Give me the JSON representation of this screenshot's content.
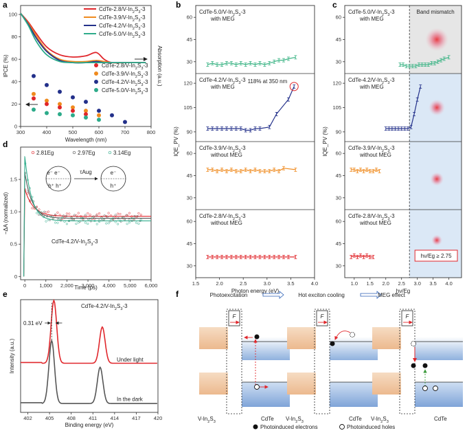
{
  "colors": {
    "red": "#e0262b",
    "orange": "#ef8a1e",
    "navy": "#23308a",
    "teal": "#2dab8a",
    "green": "#3cb485",
    "grey": "#555555",
    "blue_panel": "#dbe8f6",
    "grey_panel": "#e6e6e6",
    "sample_bg": "#f2d2b4"
  },
  "chart_data": [
    {
      "panel": "a",
      "type": "line",
      "xlabel": "Wavelength (nm)",
      "ylabel": "IPCE (%)",
      "ylabel_right": "Absorption (a.u.)",
      "xlim": [
        300,
        800
      ],
      "ylim": [
        0,
        100
      ],
      "xticks": [
        "300",
        "400",
        "500",
        "600",
        "700",
        "800"
      ],
      "yticks": [
        "0",
        "20",
        "40",
        "60",
        "80",
        "100"
      ],
      "legend_lines": [
        "CdTe-2.8/V-In2S3-3",
        "CdTe-3.9/V-In2S3-3",
        "CdTe-4.2/V-In2S3-3",
        "CdTe-5.0/V-In2S3-3"
      ],
      "legend_points": [
        "CdTe-2.8/V-In2S3-3",
        "CdTe-3.9/V-In2S3-3",
        "CdTe-4.2/V-In2S3-3",
        "CdTe-5.0/V-In2S3-3"
      ],
      "absorption_series": [
        {
          "name": "CdTe-2.8/V-In2S3-3",
          "color": "red",
          "x": [
            300,
            330,
            360,
            400,
            450,
            500,
            550,
            590,
            620,
            650,
            700,
            780
          ],
          "y": [
            101,
            93,
            83,
            71,
            64,
            62,
            63,
            66,
            60,
            57,
            57,
            57
          ]
        },
        {
          "name": "CdTe-3.9/V-In2S3-3",
          "color": "orange",
          "x": [
            300,
            330,
            360,
            400,
            450,
            500,
            550,
            590,
            620,
            650,
            700,
            780
          ],
          "y": [
            101,
            92,
            81,
            68,
            60,
            58,
            58,
            59,
            58,
            57,
            57,
            57
          ]
        },
        {
          "name": "CdTe-4.2/V-In2S3-3",
          "color": "navy",
          "x": [
            300,
            330,
            360,
            400,
            450,
            500,
            550,
            590,
            620,
            650,
            700,
            780
          ],
          "y": [
            101,
            91,
            79,
            67,
            59,
            57,
            57,
            58,
            57,
            57,
            57,
            57
          ]
        },
        {
          "name": "CdTe-5.0/V-In2S3-3",
          "color": "teal",
          "x": [
            300,
            330,
            360,
            400,
            450,
            500,
            550,
            590,
            620,
            650,
            700,
            780
          ],
          "y": [
            101,
            90,
            76,
            64,
            58,
            57,
            57,
            57,
            57,
            57,
            57,
            57
          ]
        }
      ],
      "ipce_series": [
        {
          "name": "CdTe-4.2/V-In2S3-3",
          "color": "navy",
          "x": [
            350,
            400,
            450,
            500,
            550,
            600,
            650,
            700
          ],
          "y": [
            45,
            37,
            31,
            26,
            22,
            14,
            10,
            4
          ]
        },
        {
          "name": "CdTe-3.9/V-In2S3-3",
          "color": "orange",
          "x": [
            350,
            400,
            450,
            500,
            550,
            600
          ],
          "y": [
            29,
            23,
            20,
            17,
            14,
            10
          ]
        },
        {
          "name": "CdTe-2.8/V-In2S3-3",
          "color": "red",
          "x": [
            350,
            400,
            450,
            500,
            550
          ],
          "y": [
            25,
            20,
            17,
            14,
            11
          ]
        },
        {
          "name": "CdTe-5.0/V-In2S3-3",
          "color": "teal",
          "x": [
            350,
            400,
            450,
            500,
            550,
            600
          ],
          "y": [
            15,
            12,
            11,
            10,
            8,
            6
          ]
        }
      ]
    },
    {
      "panel": "b",
      "type": "line",
      "xlabel": "Photon energy (eV)",
      "ylabel": "IQE_PV (%)",
      "xlim": [
        1.5,
        4.0
      ],
      "xticks": [
        "1.5",
        "2.0",
        "2.5",
        "3.0",
        "3.5",
        "4.0"
      ],
      "subplots": [
        {
          "label": "CdTe-5.0/V-In2S3-3",
          "sub": "with MEG",
          "color": "green",
          "ylim": [
            22,
            68
          ],
          "yticks": [
            "30",
            "45",
            "60"
          ],
          "x": [
            1.75,
            1.85,
            1.95,
            2.05,
            2.15,
            2.25,
            2.35,
            2.45,
            2.55,
            2.65,
            2.75,
            2.85,
            2.95,
            3.05,
            3.15,
            3.25,
            3.35,
            3.45,
            3.6
          ],
          "y": [
            28,
            29,
            28,
            28,
            29,
            29,
            28,
            29,
            28,
            29,
            28,
            29,
            28,
            29,
            30,
            31,
            31,
            32,
            33
          ]
        },
        {
          "label": "CdTe-4.2/V-In2S3-3",
          "sub": "with MEG",
          "color": "navy",
          "ylim": [
            84,
            126
          ],
          "yticks": [
            "90",
            "105",
            "120"
          ],
          "annotation": "118% at 350 nm",
          "x": [
            1.75,
            1.85,
            1.95,
            2.05,
            2.15,
            2.25,
            2.35,
            2.45,
            2.55,
            2.65,
            2.75,
            2.85,
            3.05,
            3.2,
            3.45,
            3.57
          ],
          "y": [
            92,
            92,
            92,
            92,
            92,
            92,
            92,
            92,
            91,
            91,
            92,
            92,
            93,
            101,
            110,
            118
          ]
        },
        {
          "label": "CdTe-3.9/V-In2S3-3",
          "sub": "without MEG",
          "color": "orange",
          "ylim": [
            22,
            68
          ],
          "yticks": [
            "30",
            "45",
            "60"
          ],
          "x": [
            1.75,
            1.85,
            1.95,
            2.05,
            2.15,
            2.25,
            2.35,
            2.45,
            2.55,
            2.65,
            2.75,
            2.85,
            2.95,
            3.05,
            3.15,
            3.25,
            3.35,
            3.6
          ],
          "y": [
            49,
            49,
            48,
            49,
            48,
            49,
            48,
            48,
            49,
            48,
            49,
            48,
            48,
            48,
            49,
            48,
            50,
            49
          ]
        },
        {
          "label": "CdTe-2.8/V-In2S3-3",
          "sub": "without MEG",
          "color": "red",
          "ylim": [
            22,
            68
          ],
          "yticks": [
            "30",
            "45",
            "60"
          ],
          "x": [
            1.75,
            1.85,
            1.95,
            2.05,
            2.15,
            2.25,
            2.35,
            2.45,
            2.55,
            2.65,
            2.75,
            2.85,
            2.95,
            3.05,
            3.15,
            3.25,
            3.35,
            3.45,
            3.6
          ],
          "y": [
            36,
            36,
            36,
            36,
            36,
            36,
            36,
            36,
            36,
            36,
            36,
            36,
            36,
            36,
            36,
            36,
            36,
            36,
            36
          ]
        }
      ]
    },
    {
      "panel": "c",
      "type": "line",
      "xlabel": "hν/Eg",
      "ylabel": "IQE_PV (%)",
      "xlim": [
        0.7,
        4.4
      ],
      "xticks": [
        "1.0",
        "1.5",
        "2.0",
        "2.5",
        "3.0",
        "3.5",
        "4.0"
      ],
      "shade_start": 2.75,
      "shade_label": "Band mismatch",
      "box_label": "hν/Eg ≥ 2.75",
      "subplots": [
        {
          "label": "CdTe-5.0/V-In2S3-3",
          "sub": "with MEG",
          "color": "green",
          "ylim": [
            22,
            68
          ],
          "yticks": [
            "30",
            "45",
            "60"
          ],
          "x": [
            2.45,
            2.55,
            2.65,
            2.75,
            2.85,
            2.95,
            3.05,
            3.15,
            3.25,
            3.35,
            3.45,
            3.55,
            3.65,
            3.75,
            3.85,
            4.0
          ],
          "y": [
            28,
            28,
            27,
            27,
            27,
            27,
            28,
            28,
            28,
            28,
            29,
            29,
            30,
            31,
            32,
            33
          ]
        },
        {
          "label": "CdTe-4.2/V-In2S3-3",
          "sub": "with MEG",
          "color": "navy",
          "ylim": [
            84,
            126
          ],
          "yticks": [
            "90",
            "105",
            "120"
          ],
          "x": [
            2.0,
            2.1,
            2.2,
            2.3,
            2.4,
            2.5,
            2.6,
            2.7,
            2.8,
            2.9,
            3.0,
            3.1
          ],
          "y": [
            92,
            92,
            92,
            92,
            92,
            92,
            92,
            92,
            93,
            101,
            110,
            118
          ]
        },
        {
          "label": "CdTe-3.9/V-In2S3-3",
          "sub": "without MEG",
          "color": "orange",
          "ylim": [
            22,
            68
          ],
          "yticks": [
            "30",
            "45",
            "60"
          ],
          "x": [
            0.9,
            1.0,
            1.1,
            1.2,
            1.3,
            1.4,
            1.5,
            1.6,
            1.7,
            1.8
          ],
          "y": [
            49,
            49,
            48,
            49,
            48,
            49,
            48,
            48,
            49,
            48
          ]
        },
        {
          "label": "CdTe-2.8/V-In2S3-3",
          "sub": "without MEG",
          "color": "red",
          "ylim": [
            22,
            68
          ],
          "yticks": [
            "30",
            "45",
            "60"
          ],
          "x": [
            0.9,
            1.0,
            1.1,
            1.2,
            1.3,
            1.4,
            1.5,
            1.6
          ],
          "y": [
            36,
            37,
            36,
            37,
            36,
            37,
            36,
            36
          ]
        }
      ]
    },
    {
      "panel": "d",
      "type": "line",
      "xlabel": "Time (ps)",
      "ylabel": "−ΔA (normalized)",
      "xlim": [
        -200,
        6000
      ],
      "ylim": [
        -0.05,
        2.0
      ],
      "xticks": [
        "0",
        "1,000",
        "2,000",
        "3,000",
        "4,000",
        "5,000",
        "6,000"
      ],
      "yticks": [
        "0",
        "0.5",
        "1.0",
        "1.5"
      ],
      "legend": [
        "2.81Eg",
        "2.97Eg",
        "3.14Eg"
      ],
      "sample": "CdTe-4.2/V-In2S3-3",
      "auger_label": "τAug",
      "series": [
        {
          "name": "2.81Eg",
          "color": "red",
          "peak": 1.35,
          "plateau": 0.93,
          "tau": 400
        },
        {
          "name": "2.97Eg",
          "color": "grey",
          "peak": 1.6,
          "plateau": 0.9,
          "tau": 350
        },
        {
          "name": "3.14Eg",
          "color": "teal",
          "peak": 1.85,
          "plateau": 0.86,
          "tau": 320
        }
      ]
    },
    {
      "panel": "e",
      "type": "line",
      "xlabel": "Binding energy (eV)",
      "ylabel": "Intensity (a.u.)",
      "xlim": [
        401,
        420
      ],
      "xticks": [
        "402",
        "405",
        "408",
        "411",
        "414",
        "417",
        "420"
      ],
      "title": "CdTe-4.2/V-In2S3-3",
      "shift_label": "0.31 eV",
      "series": [
        {
          "name": "Under light",
          "color": "red",
          "peaks": [
            405.6,
            412.3
          ],
          "heights": [
            0.78,
            0.45
          ],
          "baseline": 0.5
        },
        {
          "name": "In the dark",
          "color": "grey",
          "peaks": [
            405.3,
            412.0
          ],
          "heights": [
            0.78,
            0.45
          ],
          "baseline": 0.0
        }
      ]
    }
  ],
  "panels": {
    "a": "a",
    "b": "b",
    "c": "c",
    "d": "d",
    "e": "e",
    "f": "f"
  },
  "diagram_f": {
    "steps": [
      "Photoexcitation",
      "Hot exciton cooling",
      "MEG effect"
    ],
    "field": "F",
    "left_label": "V-In2S3",
    "right_label": "CdTe",
    "legend_electrons": "Photoinduced electrons",
    "legend_holes": "Photoinduced holes"
  }
}
